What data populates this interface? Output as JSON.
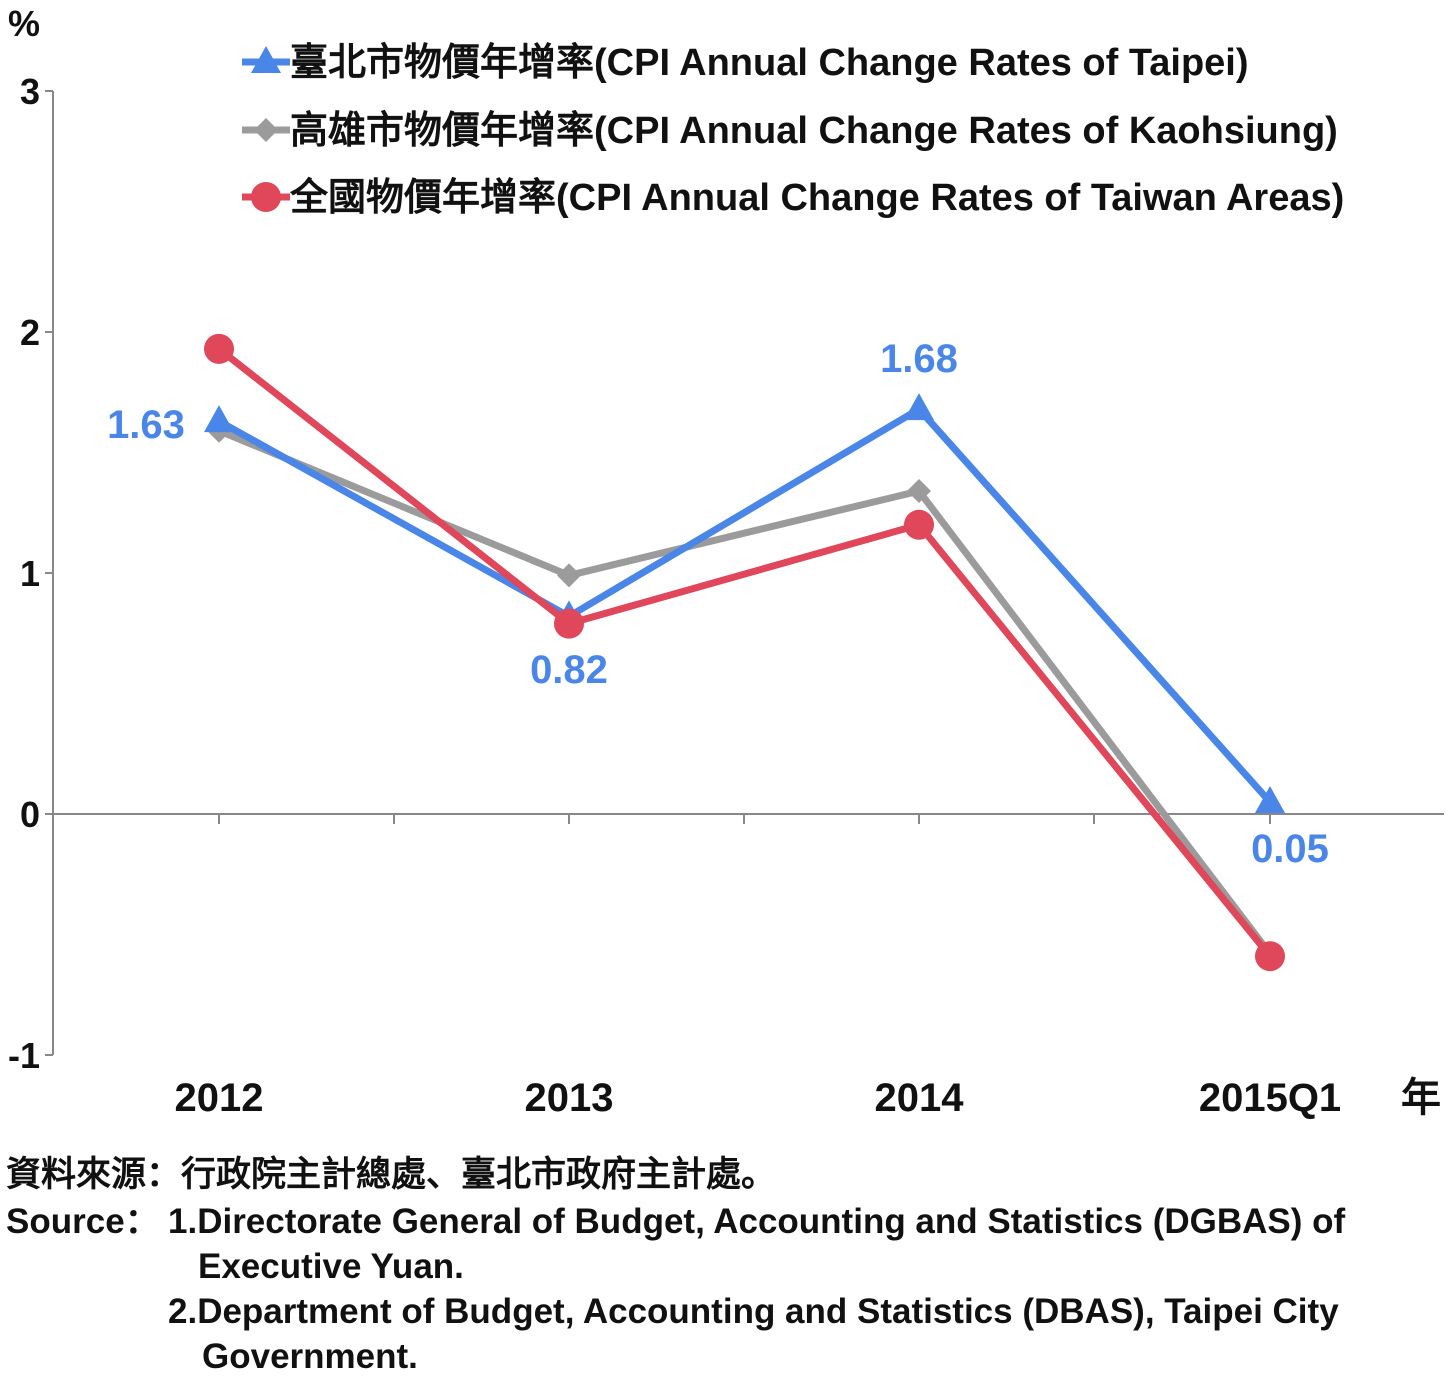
{
  "chart_data": {
    "type": "line",
    "ylabel": "%",
    "xlabel": "年",
    "ylim": [
      -1,
      3
    ],
    "yticks": [
      -1,
      0,
      1,
      2,
      3
    ],
    "categories": [
      "2012",
      "2013",
      "2014",
      "2015Q1"
    ],
    "grid": false,
    "legend_position": "top-right",
    "series": [
      {
        "name": "臺北市物價年增率(CPI Annual Change Rates of Taipei)",
        "color": "#4a86e8",
        "marker": "triangle",
        "values": [
          1.63,
          0.82,
          1.68,
          0.05
        ],
        "labels": [
          "1.63",
          "0.82",
          "1.68",
          "0.05"
        ]
      },
      {
        "name": "高雄市物價年增率(CPI Annual Change Rates of Kaohsiung)",
        "color": "#9b9b9b",
        "marker": "diamond",
        "values": [
          1.59,
          0.99,
          1.34,
          -0.58
        ]
      },
      {
        "name": "全國物價年增率(CPI Annual Change Rates of Taiwan Areas)",
        "color": "#e0475a",
        "marker": "circle",
        "values": [
          1.93,
          0.79,
          1.2,
          -0.59
        ]
      }
    ]
  },
  "source": {
    "zh": "資料來源：行政院主計總處、臺北市政府主計處。",
    "en_prefix": "Source：",
    "item1_line1": "1.Directorate General of Budget, Accounting and Statistics (DGBAS) of",
    "item1_line2": "Executive Yuan.",
    "item2_line1": "2.Department of Budget, Accounting and Statistics (DBAS), Taipei City",
    "item2_line2": "Government."
  }
}
